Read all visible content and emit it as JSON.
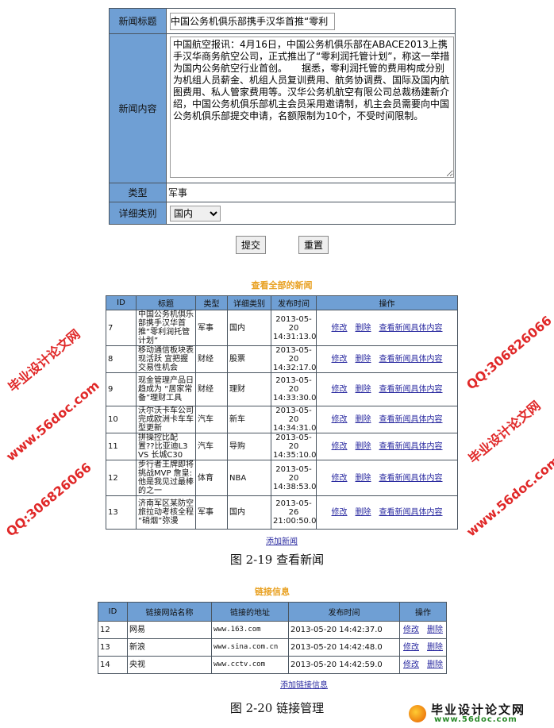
{
  "form": {
    "title_label": "新闻标题",
    "title_value": "中国公务机俱乐部携手汉华首推“零利",
    "content_label": "新闻内容",
    "content_value": "中国航空报讯：4月16日，中国公务机俱乐部在ABACE2013上携手汉华商务航空公司，正式推出了“零利润托管计划”，称这一举措为国内公务航空行业首创。　　据悉，零利润托管的费用构成分别为机组人员薪金、机组人员复训费用、航务协调费、国际及国内航图费用、私人管家费用等。汉华公务机航空有限公司总裁杨建新介绍，中国公务机俱乐部机主会员采用邀请制，机主会员需要向中国公务机俱乐部提交申请，名额限制为10个，不受时间限制。",
    "type_label": "类型",
    "type_value": "军事",
    "detail_label": "详细类别",
    "detail_value": "国内",
    "submit": "提交",
    "reset": "重置"
  },
  "news": {
    "title": "查看全部的新闻",
    "headers": [
      "ID",
      "标题",
      "类型",
      "详细类别",
      "发布时间",
      "操作"
    ],
    "rows": [
      [
        "7",
        "中国公务机俱乐部携手汉华首推“零利润托管计划”",
        "军事",
        "国内",
        "2013-05-20 14:31:13.0"
      ],
      [
        "8",
        "移动通信板块表现活跃 宜把握交易性机会",
        "财经",
        "股票",
        "2013-05-20 14:32:17.0"
      ],
      [
        "9",
        "现金管理产品日趋成为 “居家常备”理财工具",
        "财经",
        "理财",
        "2013-05-20 14:33:30.0"
      ],
      [
        "10",
        "沃尔沃卡车公司完成欧洲卡车车型更新",
        "汽车",
        "新车",
        "2013-05-20 14:34:31.0"
      ],
      [
        "11",
        "拼操控比配置??比亚迪L3 VS 长城C30",
        "汽车",
        "导购",
        "2013-05-20 14:35:10.0"
      ],
      [
        "12",
        "步行者王牌即将挑战MVP 詹皇:他是我见过最棒的之一",
        "体育",
        "NBA",
        "2013-05-20 14:38:53.0"
      ],
      [
        "13",
        "济南军区某防空旅拉动考核全程 “硝烟”弥漫",
        "军事",
        "国内",
        "2013-05-26 21:00:50.0"
      ]
    ],
    "edit": "修改",
    "delete": "删除",
    "view": "查看新闻具体内容",
    "add": "添加新闻",
    "caption": "图 2-19  查看新闻"
  },
  "links": {
    "title": "链接信息",
    "headers": [
      "ID",
      "链接网站名称",
      "链接的地址",
      "发布时间",
      "操作"
    ],
    "rows": [
      [
        "12",
        "网易",
        "www.163.com",
        "2013-05-20 14:42:37.0"
      ],
      [
        "13",
        "新浪",
        "www.sina.com.cn",
        "2013-05-20 14:42:48.0"
      ],
      [
        "14",
        "央视",
        "www.cctv.com",
        "2013-05-20 14:42:59.0"
      ]
    ],
    "edit": "修改",
    "delete": "删除",
    "add": "添加链接信息",
    "caption": "图  2-20  链接管理"
  },
  "watermark": {
    "site": "毕业设计论文网",
    "url": "www.56doc.com",
    "qq": "QQ:306826066"
  },
  "colors": {
    "header": "#6f9fd4",
    "title": "#e8a020",
    "link": "#2a2aa0"
  }
}
